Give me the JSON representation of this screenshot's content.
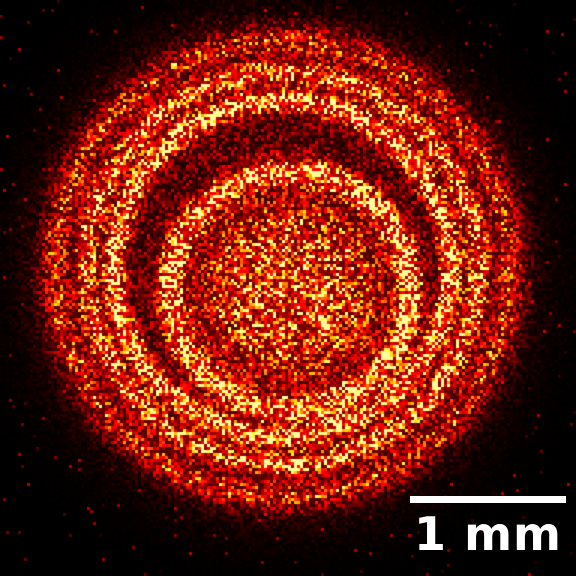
{
  "image": {
    "description_colormap": "hot",
    "background_color": "#000000",
    "ring_color": "#ff2000",
    "highlight_color": "#ffee40"
  },
  "scale_bar": {
    "label": "1 mm",
    "color": "#ffffff"
  }
}
